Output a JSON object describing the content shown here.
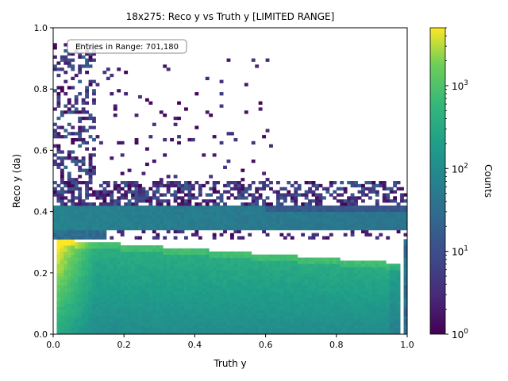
{
  "chart_data": {
    "type": "heatmap",
    "title": "18x275: Reco y vs Truth y [LIMITED RANGE]",
    "xlabel": "Truth y",
    "ylabel": "Reco y (da)",
    "xlim": [
      0,
      1
    ],
    "ylim": [
      0,
      1
    ],
    "x_ticks": [
      "0.0",
      "0.2",
      "0.4",
      "0.6",
      "0.8",
      "1.0"
    ],
    "y_ticks": [
      "0.0",
      "0.2",
      "0.4",
      "0.6",
      "0.8",
      "1.0"
    ],
    "annotation": "Entries in Range: 701,180",
    "colorbar": {
      "label": "Counts",
      "scale": "log",
      "range": [
        1,
        5000
      ],
      "ticks": [
        {
          "value": 1,
          "base": "10",
          "exp": "0"
        },
        {
          "value": 10,
          "base": "10",
          "exp": "1"
        },
        {
          "value": 100,
          "base": "10",
          "exp": "2"
        },
        {
          "value": 1000,
          "base": "10",
          "exp": "3"
        }
      ],
      "colormap": "viridis"
    },
    "regions": [
      {
        "name": "main diagonal band",
        "x": [
          0.0,
          1.0
        ],
        "y": [
          0.0,
          0.31
        ],
        "counts": "100-5000",
        "peak_near_x": 0.03
      },
      {
        "name": "upper band",
        "x": [
          0.0,
          1.0
        ],
        "y": [
          0.34,
          0.42
        ],
        "counts": "50-200"
      },
      {
        "name": "sparse band",
        "x": [
          0.0,
          1.0
        ],
        "y": [
          0.42,
          0.5
        ],
        "counts": "1-50"
      },
      {
        "name": "sparse tail",
        "x": [
          0.0,
          0.6
        ],
        "y": [
          0.5,
          0.95
        ],
        "counts": "1-20"
      }
    ]
  }
}
